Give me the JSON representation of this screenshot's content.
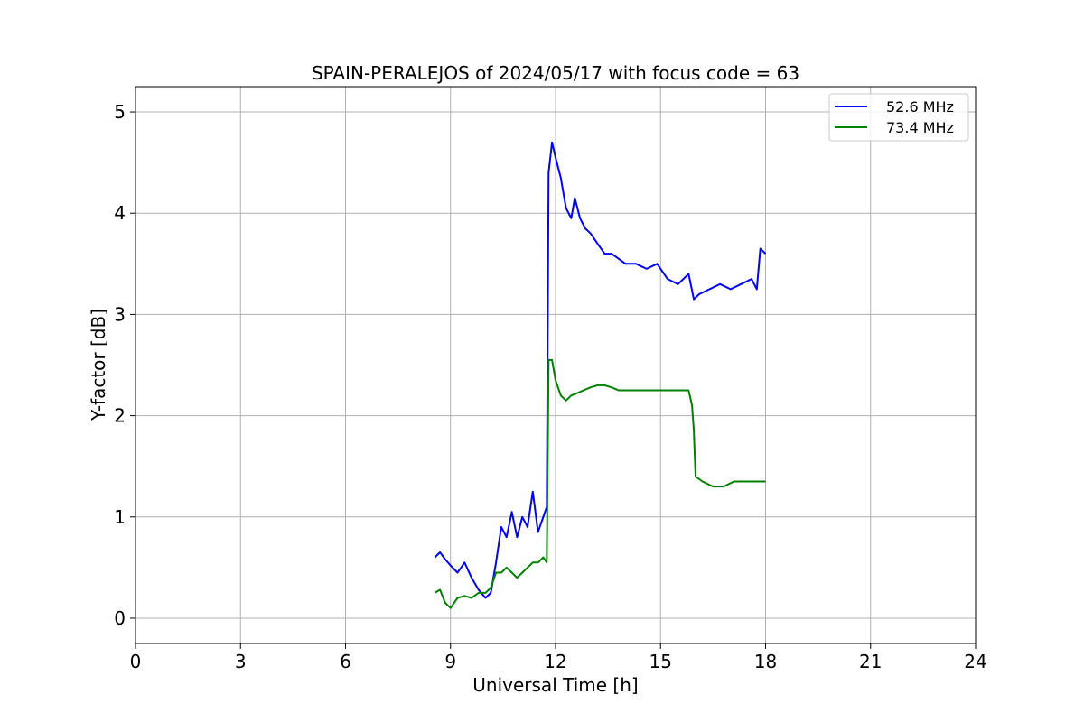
{
  "chart_data": {
    "type": "line",
    "title": "SPAIN-PERALEJOS of 2024/05/17 with focus code = 63",
    "xlabel": "Universal Time [h]",
    "ylabel": "Y-factor [dB]",
    "xlim": [
      0,
      24
    ],
    "ylim": [
      -0.25,
      5.25
    ],
    "xticks": [
      0,
      3,
      6,
      9,
      12,
      15,
      18,
      21,
      24
    ],
    "yticks": [
      0,
      1,
      2,
      3,
      4,
      5
    ],
    "grid": true,
    "legend_position": "top-right",
    "series": [
      {
        "name": "52.6 MHz",
        "color": "#0000ff",
        "x": [
          8.55,
          8.7,
          8.85,
          9.0,
          9.2,
          9.4,
          9.6,
          9.8,
          10.0,
          10.15,
          10.3,
          10.45,
          10.6,
          10.75,
          10.9,
          11.05,
          11.2,
          11.35,
          11.5,
          11.65,
          11.75,
          11.8,
          11.9,
          12.0,
          12.15,
          12.3,
          12.45,
          12.55,
          12.7,
          12.85,
          13.0,
          13.2,
          13.4,
          13.6,
          13.8,
          14.0,
          14.3,
          14.6,
          14.9,
          15.2,
          15.5,
          15.8,
          15.95,
          16.1,
          16.4,
          16.7,
          17.0,
          17.3,
          17.6,
          17.75,
          17.85,
          18.0
        ],
        "y": [
          0.6,
          0.65,
          0.58,
          0.52,
          0.45,
          0.55,
          0.4,
          0.28,
          0.2,
          0.25,
          0.55,
          0.9,
          0.8,
          1.05,
          0.8,
          1.0,
          0.9,
          1.25,
          0.85,
          1.0,
          1.1,
          4.4,
          4.7,
          4.55,
          4.35,
          4.05,
          3.95,
          4.15,
          3.95,
          3.85,
          3.8,
          3.7,
          3.6,
          3.6,
          3.55,
          3.5,
          3.5,
          3.45,
          3.5,
          3.35,
          3.3,
          3.4,
          3.15,
          3.2,
          3.25,
          3.3,
          3.25,
          3.3,
          3.35,
          3.25,
          3.65,
          3.6
        ]
      },
      {
        "name": "73.4 MHz",
        "color": "#008000",
        "x": [
          8.55,
          8.7,
          8.85,
          9.0,
          9.2,
          9.4,
          9.6,
          9.8,
          10.0,
          10.15,
          10.3,
          10.45,
          10.6,
          10.75,
          10.9,
          11.05,
          11.2,
          11.35,
          11.5,
          11.65,
          11.75,
          11.8,
          11.9,
          12.0,
          12.15,
          12.3,
          12.45,
          12.6,
          12.8,
          13.0,
          13.2,
          13.4,
          13.6,
          13.8,
          14.0,
          14.3,
          14.6,
          14.9,
          15.2,
          15.5,
          15.8,
          15.9,
          15.95,
          16.0,
          16.2,
          16.5,
          16.8,
          17.1,
          17.4,
          17.7,
          18.0
        ],
        "y": [
          0.25,
          0.28,
          0.15,
          0.1,
          0.2,
          0.22,
          0.2,
          0.25,
          0.25,
          0.3,
          0.45,
          0.45,
          0.5,
          0.45,
          0.4,
          0.45,
          0.5,
          0.55,
          0.55,
          0.6,
          0.55,
          2.55,
          2.55,
          2.35,
          2.2,
          2.15,
          2.2,
          2.22,
          2.25,
          2.28,
          2.3,
          2.3,
          2.28,
          2.25,
          2.25,
          2.25,
          2.25,
          2.25,
          2.25,
          2.25,
          2.25,
          2.1,
          1.85,
          1.4,
          1.35,
          1.3,
          1.3,
          1.35,
          1.35,
          1.35,
          1.35
        ]
      }
    ]
  }
}
